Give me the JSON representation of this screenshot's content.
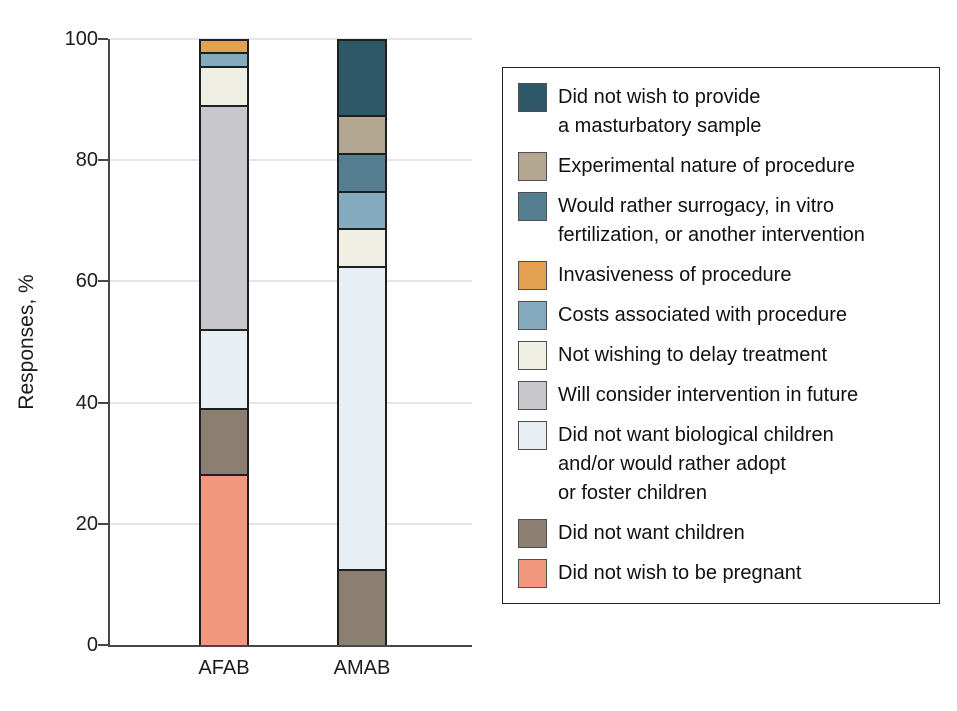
{
  "chart_data": {
    "type": "bar",
    "stacked": true,
    "title": "",
    "xlabel": "",
    "ylabel": "Responses, %",
    "ylim": [
      0,
      100
    ],
    "yticks": [
      0,
      20,
      40,
      60,
      80,
      100
    ],
    "grid": true,
    "legend_position": "right",
    "categories": [
      "AFAB",
      "AMAB"
    ],
    "series": [
      {
        "name": "Did not wish to provide a masturbatory sample",
        "label": "Did not wish to provide\na masturbatory sample",
        "color": "#2e5867",
        "values": [
          0,
          12.5
        ]
      },
      {
        "name": "Experimental nature of procedure",
        "label": "Experimental nature of procedure",
        "color": "#b3a791",
        "values": [
          0,
          6.25
        ]
      },
      {
        "name": "Would rather surrogacy, in vitro fertilization, or another intervention",
        "label": "Would rather surrogacy, in vitro\nfertilization, or another intervention",
        "color": "#567e91",
        "values": [
          0,
          6.25
        ]
      },
      {
        "name": "Invasiveness of procedure",
        "label": "Invasiveness of procedure",
        "color": "#e2a050",
        "values": [
          2.2,
          0
        ]
      },
      {
        "name": "Costs associated with procedure",
        "label": "Costs associated with procedure",
        "color": "#86aabd",
        "values": [
          2.2,
          6.25
        ]
      },
      {
        "name": "Not wishing to delay treatment",
        "label": "Not wishing to delay treatment",
        "color": "#f0efe3",
        "values": [
          6.5,
          6.25
        ]
      },
      {
        "name": "Will consider intervention in future",
        "label": "Will consider intervention in future",
        "color": "#c7c7cb",
        "values": [
          37.0,
          0
        ]
      },
      {
        "name": "Did not want biological children and/or would rather adopt or foster children",
        "label": "Did not want biological children\nand/or would rather adopt\nor foster children",
        "color": "#e7eff4",
        "values": [
          13.0,
          50.0
        ]
      },
      {
        "name": "Did not want children",
        "label": "Did not want children",
        "color": "#8a7f70",
        "values": [
          10.9,
          12.5
        ]
      },
      {
        "name": "Did not wish to be pregnant",
        "label": "Did not wish to be pregnant",
        "color": "#f2987f",
        "values": [
          28.3,
          0
        ]
      }
    ]
  }
}
